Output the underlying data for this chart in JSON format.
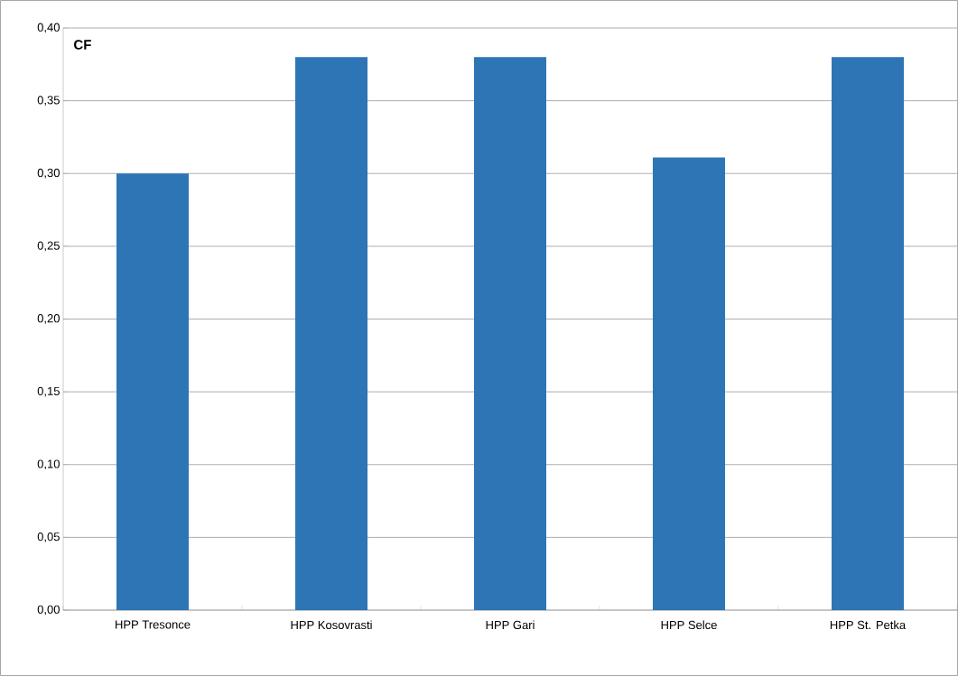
{
  "chart_data": {
    "type": "bar",
    "ylabel": "CF",
    "categories": [
      "HPP Tresonce",
      "HPP Kosovrasti",
      "HPP Gari",
      "HPP Selce",
      "HPP St. Petka"
    ],
    "values": [
      0.3,
      0.38,
      0.38,
      0.311,
      0.38
    ],
    "color": "#2e75b6",
    "ylim": [
      0,
      0.4
    ],
    "yticks": [
      {
        "value": 0,
        "label": "0,00"
      },
      {
        "value": 0.05,
        "label": "0,05"
      },
      {
        "value": 0.1,
        "label": "0,10"
      },
      {
        "value": 0.15,
        "label": "0,15"
      },
      {
        "value": 0.2,
        "label": "0,20"
      },
      {
        "value": 0.25,
        "label": "0,25"
      },
      {
        "value": 0.3,
        "label": "0,30"
      },
      {
        "value": 0.35,
        "label": "0,35"
      },
      {
        "value": 0.4,
        "label": "0,40"
      }
    ],
    "grid": "y"
  }
}
